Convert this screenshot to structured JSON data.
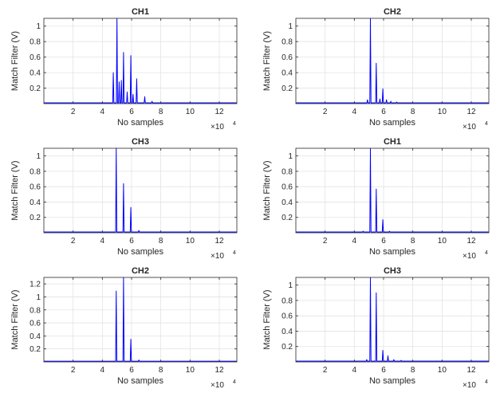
{
  "figure": {
    "background": "#ffffff",
    "line_color": "#0000ff"
  },
  "chart_data": [
    {
      "type": "line",
      "title": "CH1",
      "xlabel": "No samples",
      "ylabel": "Match Filter (V)",
      "x_multiplier": "×10",
      "x_multiplier_exp": "4",
      "xlim": [
        0,
        13.2
      ],
      "ylim": [
        0,
        1.1
      ],
      "xticks": [
        2,
        4,
        6,
        8,
        10,
        12
      ],
      "yticks": [
        0.2,
        0.4,
        0.6,
        0.8,
        1
      ],
      "grid": true,
      "series": [
        {
          "color": "#0000ff",
          "baseline": 0.01,
          "peaks": [
            [
              4.75,
              0.4
            ],
            [
              5.0,
              1.1
            ],
            [
              5.15,
              0.28
            ],
            [
              5.3,
              0.3
            ],
            [
              5.45,
              0.66
            ],
            [
              5.7,
              0.15
            ],
            [
              5.95,
              0.62
            ],
            [
              6.1,
              0.12
            ],
            [
              6.35,
              0.32
            ],
            [
              6.9,
              0.09
            ],
            [
              7.4,
              0.03
            ]
          ]
        }
      ]
    },
    {
      "type": "line",
      "title": "CH2",
      "xlabel": "No samples",
      "ylabel": "Match Filter (V)",
      "x_multiplier": "×10",
      "x_multiplier_exp": "4",
      "xlim": [
        0,
        13.2
      ],
      "ylim": [
        0,
        1.1
      ],
      "xticks": [
        2,
        4,
        6,
        8,
        10,
        12
      ],
      "yticks": [
        0.2,
        0.4,
        0.6,
        0.8,
        1
      ],
      "grid": true,
      "series": [
        {
          "color": "#0000ff",
          "baseline": 0.01,
          "peaks": [
            [
              4.9,
              0.05
            ],
            [
              5.1,
              1.1
            ],
            [
              5.5,
              0.52
            ],
            [
              5.75,
              0.06
            ],
            [
              5.95,
              0.19
            ],
            [
              6.2,
              0.05
            ],
            [
              6.5,
              0.03
            ],
            [
              6.9,
              0.02
            ]
          ]
        }
      ]
    },
    {
      "type": "line",
      "title": "CH3",
      "xlabel": "No samples",
      "ylabel": "Match Filter (V)",
      "x_multiplier": "×10",
      "x_multiplier_exp": "4",
      "xlim": [
        0,
        13.2
      ],
      "ylim": [
        0,
        1.1
      ],
      "xticks": [
        2,
        4,
        6,
        8,
        10,
        12
      ],
      "yticks": [
        0.2,
        0.4,
        0.6,
        0.8,
        1
      ],
      "grid": true,
      "series": [
        {
          "color": "#0000ff",
          "baseline": 0.01,
          "peaks": [
            [
              4.95,
              1.1
            ],
            [
              5.45,
              0.64
            ],
            [
              5.95,
              0.33
            ],
            [
              6.5,
              0.03
            ]
          ]
        }
      ]
    },
    {
      "type": "line",
      "title": "CH1",
      "xlabel": "No samples",
      "ylabel": "Match Filter (V)",
      "x_multiplier": "×10",
      "x_multiplier_exp": "4",
      "xlim": [
        0,
        13.2
      ],
      "ylim": [
        0,
        1.1
      ],
      "xticks": [
        2,
        4,
        6,
        8,
        10,
        12
      ],
      "yticks": [
        0.2,
        0.4,
        0.6,
        0.8,
        1
      ],
      "grid": true,
      "series": [
        {
          "color": "#0000ff",
          "baseline": 0.01,
          "peaks": [
            [
              4.6,
              0.02
            ],
            [
              5.1,
              1.1
            ],
            [
              5.5,
              0.57
            ],
            [
              5.95,
              0.17
            ],
            [
              6.4,
              0.02
            ]
          ]
        }
      ]
    },
    {
      "type": "line",
      "title": "CH2",
      "xlabel": "No samples",
      "ylabel": "Match Filter (V)",
      "x_multiplier": "×10",
      "x_multiplier_exp": "4",
      "xlim": [
        0,
        13.2
      ],
      "ylim": [
        0,
        1.3
      ],
      "xticks": [
        2,
        4,
        6,
        8,
        10,
        12
      ],
      "yticks": [
        0.2,
        0.4,
        0.6,
        0.8,
        1,
        1.2
      ],
      "grid": true,
      "series": [
        {
          "color": "#0000ff",
          "baseline": 0.01,
          "peaks": [
            [
              4.95,
              1.09
            ],
            [
              5.45,
              1.3
            ],
            [
              5.95,
              0.35
            ],
            [
              6.5,
              0.03
            ]
          ]
        }
      ]
    },
    {
      "type": "line",
      "title": "CH3",
      "xlabel": "No samples",
      "ylabel": "Match Filter (V)",
      "x_multiplier": "×10",
      "x_multiplier_exp": "4",
      "xlim": [
        0,
        13.2
      ],
      "ylim": [
        0,
        1.1
      ],
      "xticks": [
        2,
        4,
        6,
        8,
        10,
        12
      ],
      "yticks": [
        0.2,
        0.4,
        0.6,
        0.8,
        1
      ],
      "grid": true,
      "series": [
        {
          "color": "#0000ff",
          "baseline": 0.01,
          "peaks": [
            [
              4.85,
              0.03
            ],
            [
              5.1,
              1.1
            ],
            [
              5.5,
              0.9
            ],
            [
              5.95,
              0.15
            ],
            [
              6.3,
              0.08
            ],
            [
              6.7,
              0.03
            ],
            [
              7.2,
              0.02
            ]
          ]
        }
      ]
    }
  ]
}
